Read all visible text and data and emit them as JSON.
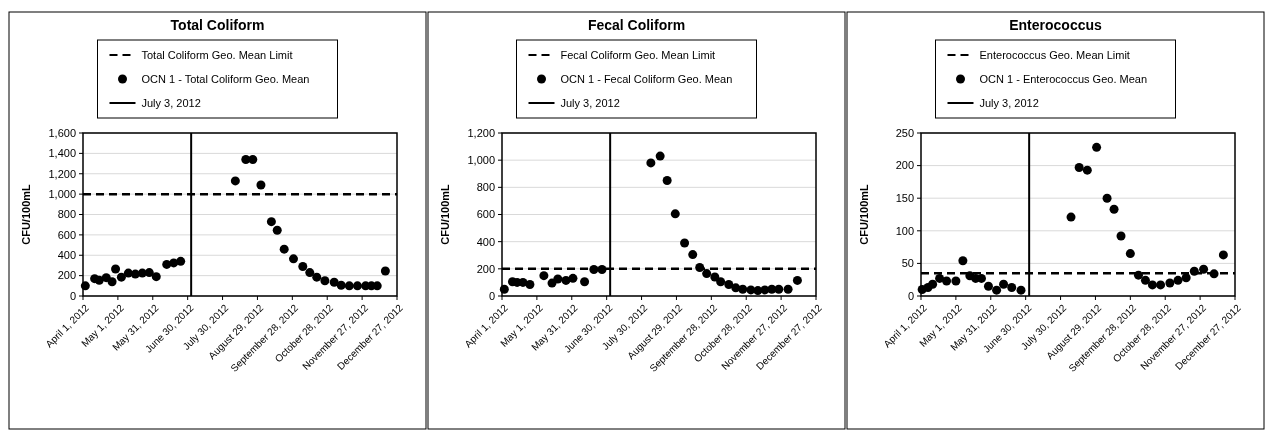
{
  "chart_data": [
    {
      "type": "scatter",
      "title": "Total Coliform",
      "ylabel": "CFU/100mL",
      "marker": "circle",
      "grid": "y",
      "legend": "top",
      "xlim": [
        "2012-04-01",
        "2012-12-27"
      ],
      "xticks": [
        {
          "value": "2012-04-01",
          "label": "April 1, 2012"
        },
        {
          "value": "2012-05-01",
          "label": "May 1, 2012"
        },
        {
          "value": "2012-05-31",
          "label": "May 31, 2012"
        },
        {
          "value": "2012-06-30",
          "label": "June 30, 2012"
        },
        {
          "value": "2012-07-30",
          "label": "July 30, 2012"
        },
        {
          "value": "2012-08-29",
          "label": "August 29, 2012"
        },
        {
          "value": "2012-09-28",
          "label": "September 28, 2012"
        },
        {
          "value": "2012-10-28",
          "label": "October 28, 2012"
        },
        {
          "value": "2012-11-27",
          "label": "November 27, 2012"
        },
        {
          "value": "2012-12-27",
          "label": "December 27, 2012"
        }
      ],
      "ylim": [
        0,
        1600
      ],
      "yticks": [
        0,
        200,
        400,
        600,
        800,
        {
          "value": 1000,
          "label": "1,000"
        },
        {
          "value": 1200,
          "label": "1,200"
        },
        {
          "value": 1400,
          "label": "1,400"
        },
        {
          "value": 1600,
          "label": "1,600"
        }
      ],
      "ref_lines": [
        {
          "axis": "y",
          "value": 1000,
          "label": "Total Coliform Geo. Mean Limit",
          "color": "#000000",
          "line_style": "dashed"
        },
        {
          "axis": "x",
          "value": "2012-07-03",
          "label": "July 3, 2012",
          "color": "#000000",
          "line_style": "solid"
        }
      ],
      "series": [
        {
          "name": "OCN 1 - Total Coliform Geo. Mean",
          "color": "#000000",
          "x": [
            "2012-04-03",
            "2012-04-11",
            "2012-04-15",
            "2012-04-21",
            "2012-04-26",
            "2012-04-29",
            "2012-05-04",
            "2012-05-10",
            "2012-05-16",
            "2012-05-22",
            "2012-05-28",
            "2012-06-03",
            "2012-06-12",
            "2012-06-18",
            "2012-06-24",
            "2012-08-10",
            "2012-08-19",
            "2012-08-25",
            "2012-09-01",
            "2012-09-10",
            "2012-09-15",
            "2012-09-21",
            "2012-09-29",
            "2012-10-07",
            "2012-10-13",
            "2012-10-19",
            "2012-10-26",
            "2012-11-03",
            "2012-11-09",
            "2012-11-16",
            "2012-11-23",
            "2012-11-30",
            "2012-12-05",
            "2012-12-10",
            "2012-12-17"
          ],
          "values": [
            100,
            170,
            155,
            180,
            140,
            265,
            185,
            225,
            215,
            225,
            230,
            190,
            310,
            325,
            340,
            1130,
            1340,
            1340,
            1090,
            730,
            645,
            460,
            365,
            290,
            230,
            185,
            150,
            135,
            105,
            100,
            100,
            100,
            100,
            100,
            245
          ]
        }
      ]
    },
    {
      "type": "scatter",
      "title": "Fecal Coliform",
      "ylabel": "CFU/100mL",
      "marker": "circle",
      "grid": "y",
      "legend": "top",
      "xlim": [
        "2012-04-01",
        "2012-12-27"
      ],
      "xticks": [
        {
          "value": "2012-04-01",
          "label": "April 1, 2012"
        },
        {
          "value": "2012-05-01",
          "label": "May 1, 2012"
        },
        {
          "value": "2012-05-31",
          "label": "May 31, 2012"
        },
        {
          "value": "2012-06-30",
          "label": "June 30, 2012"
        },
        {
          "value": "2012-07-30",
          "label": "July 30, 2012"
        },
        {
          "value": "2012-08-29",
          "label": "August 29, 2012"
        },
        {
          "value": "2012-09-28",
          "label": "September 28, 2012"
        },
        {
          "value": "2012-10-28",
          "label": "October 28, 2012"
        },
        {
          "value": "2012-11-27",
          "label": "November 27, 2012"
        },
        {
          "value": "2012-12-27",
          "label": "December 27, 2012"
        }
      ],
      "ylim": [
        0,
        1200
      ],
      "yticks": [
        0,
        200,
        400,
        600,
        800,
        {
          "value": 1000,
          "label": "1,000"
        },
        {
          "value": 1200,
          "label": "1,200"
        }
      ],
      "ref_lines": [
        {
          "axis": "y",
          "value": 200,
          "label": "Fecal Coliform Geo. Mean Limit",
          "color": "#000000",
          "line_style": "dashed"
        },
        {
          "axis": "x",
          "value": "2012-07-03",
          "label": "July 3, 2012",
          "color": "#000000",
          "line_style": "solid"
        }
      ],
      "series": [
        {
          "name": "OCN 1 - Fecal Coliform Geo. Mean",
          "color": "#000000",
          "x": [
            "2012-04-03",
            "2012-04-10",
            "2012-04-14",
            "2012-04-19",
            "2012-04-25",
            "2012-05-07",
            "2012-05-14",
            "2012-05-19",
            "2012-05-26",
            "2012-06-01",
            "2012-06-11",
            "2012-06-19",
            "2012-06-26",
            "2012-08-07",
            "2012-08-15",
            "2012-08-21",
            "2012-08-28",
            "2012-09-05",
            "2012-09-12",
            "2012-09-18",
            "2012-09-24",
            "2012-10-01",
            "2012-10-06",
            "2012-10-13",
            "2012-10-19",
            "2012-10-25",
            "2012-11-01",
            "2012-11-07",
            "2012-11-13",
            "2012-11-19",
            "2012-11-25",
            "2012-12-03",
            "2012-12-11"
          ],
          "values": [
            50,
            105,
            100,
            100,
            85,
            150,
            95,
            125,
            115,
            130,
            105,
            195,
            195,
            980,
            1030,
            850,
            605,
            390,
            305,
            210,
            165,
            140,
            105,
            85,
            60,
            50,
            45,
            40,
            45,
            50,
            50,
            50,
            115
          ]
        }
      ]
    },
    {
      "type": "scatter",
      "title": "Enterococcus",
      "ylabel": "CFU/100mL",
      "marker": "circle",
      "grid": "y",
      "legend": "top",
      "xlim": [
        "2012-04-01",
        "2012-12-27"
      ],
      "xticks": [
        {
          "value": "2012-04-01",
          "label": "April 1, 2012"
        },
        {
          "value": "2012-05-01",
          "label": "May 1, 2012"
        },
        {
          "value": "2012-05-31",
          "label": "May 31, 2012"
        },
        {
          "value": "2012-06-30",
          "label": "June 30, 2012"
        },
        {
          "value": "2012-07-30",
          "label": "July 30, 2012"
        },
        {
          "value": "2012-08-29",
          "label": "August 29, 2012"
        },
        {
          "value": "2012-09-28",
          "label": "September 28, 2012"
        },
        {
          "value": "2012-10-28",
          "label": "October 28, 2012"
        },
        {
          "value": "2012-11-27",
          "label": "November 27, 2012"
        },
        {
          "value": "2012-12-27",
          "label": "December 27, 2012"
        }
      ],
      "ylim": [
        0,
        250
      ],
      "yticks": [
        0,
        50,
        100,
        150,
        200,
        250
      ],
      "ref_lines": [
        {
          "axis": "y",
          "value": 35,
          "label": "Enterococcus Geo. Mean Limit",
          "color": "#000000",
          "line_style": "dashed"
        },
        {
          "axis": "x",
          "value": "2012-07-03",
          "label": "July 3, 2012",
          "color": "#000000",
          "line_style": "solid"
        }
      ],
      "series": [
        {
          "name": "OCN 1 - Enterococcus Geo. Mean",
          "color": "#000000",
          "x": [
            "2012-04-02",
            "2012-04-07",
            "2012-04-11",
            "2012-04-17",
            "2012-04-23",
            "2012-05-01",
            "2012-05-07",
            "2012-05-13",
            "2012-05-18",
            "2012-05-23",
            "2012-05-29",
            "2012-06-05",
            "2012-06-11",
            "2012-06-18",
            "2012-06-26",
            "2012-08-08",
            "2012-08-15",
            "2012-08-22",
            "2012-08-30",
            "2012-09-08",
            "2012-09-14",
            "2012-09-20",
            "2012-09-28",
            "2012-10-05",
            "2012-10-11",
            "2012-10-17",
            "2012-10-24",
            "2012-11-01",
            "2012-11-08",
            "2012-11-15",
            "2012-11-22",
            "2012-11-30",
            "2012-12-09",
            "2012-12-17"
          ],
          "values": [
            10,
            13,
            18,
            27,
            23,
            23,
            54,
            31,
            27,
            27,
            15,
            9,
            18,
            13,
            9,
            121,
            197,
            193,
            228,
            150,
            133,
            92,
            65,
            32,
            24,
            17,
            17,
            20,
            24,
            28,
            38,
            41,
            34,
            63
          ]
        }
      ]
    }
  ]
}
